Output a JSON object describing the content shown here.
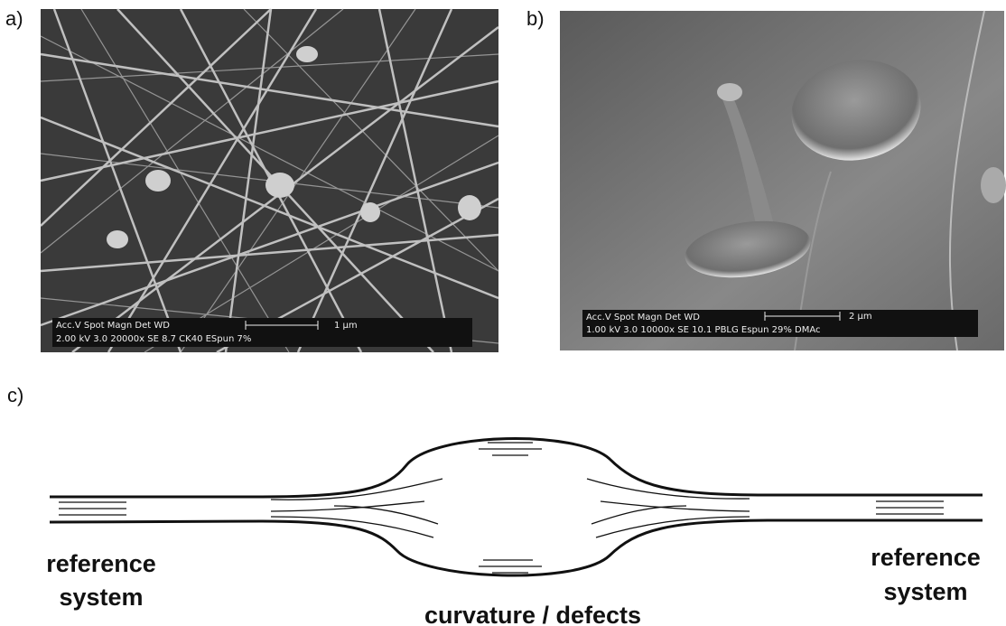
{
  "panels": [
    {
      "label": "a)",
      "info_header": "Acc.V  Spot Magn    Det  WD",
      "scale": "1 µm",
      "info": "2.00 kV 3.0   20000x   SE   8.7   CK40 ESpun  7%"
    },
    {
      "label": "b)",
      "info_header": "Acc.V  Spot Magn    Det  WD",
      "scale": "2 µm",
      "info": "1.00 kV 3.0   10000x   SE   10.1   PBLG Espun 29% DMAc"
    },
    {
      "label": "c)"
    }
  ],
  "diagram": {
    "left_label": [
      "reference",
      "system"
    ],
    "center_label": "curvature / defects",
    "right_label": [
      "reference",
      "system"
    ]
  }
}
